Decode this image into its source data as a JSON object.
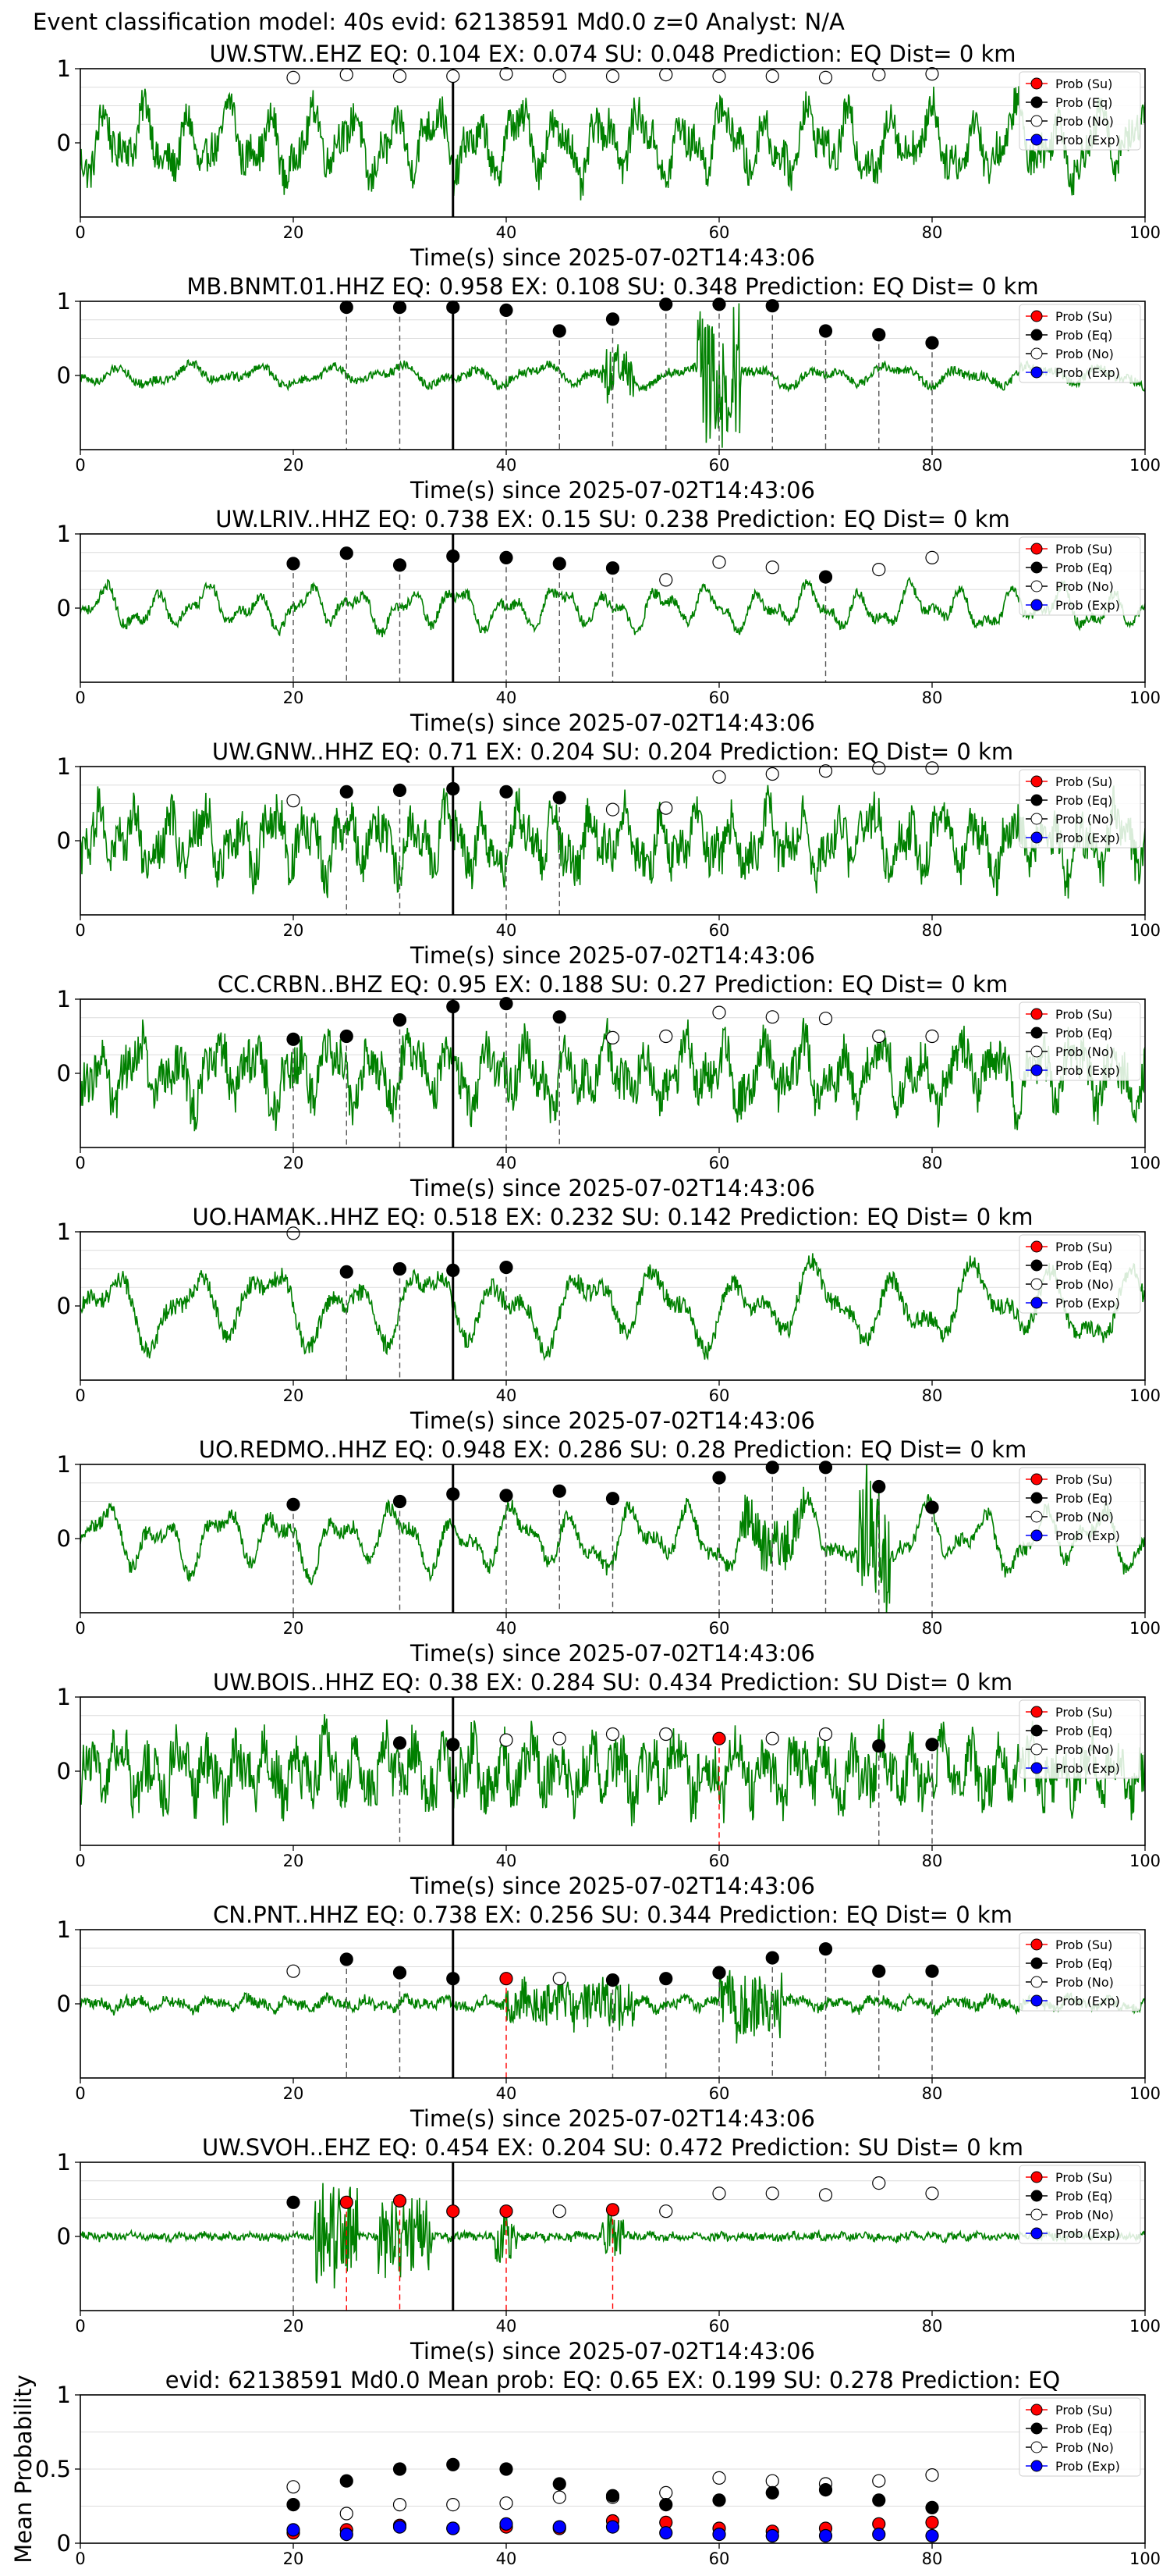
{
  "figure_title": "Event classification model: 40s evid: 62138591 Md0.0 z=0 Analyst: N/A",
  "xlabel": "Time(s) since 2025-07-02T14:43:06",
  "legend_labels": [
    "Prob (Su)",
    "Prob (Eq)",
    "Prob (No)",
    "Prob (Exp)"
  ],
  "colors": {
    "waveform": "#008000",
    "su": "#ff0000",
    "eq": "#000000",
    "no": "#ffffff",
    "exp": "#0000ff",
    "gridline": "#dcdcdc"
  },
  "chart_data": [
    {
      "type": "line",
      "title": "UW.STW..EHZ   EQ: 0.104  EX: 0.074  SU: 0.048   Prediction: EQ    Dist= 0 km",
      "xlim": [
        0,
        100
      ],
      "ylim": [
        -1,
        1
      ],
      "xticks": [
        0,
        20,
        40,
        60,
        80,
        100
      ],
      "yticks": [
        0,
        1
      ],
      "onset_x": 35,
      "waveform": {
        "style": "dense",
        "amp": 0.5,
        "freq": 0.85,
        "noise": 0.25
      },
      "points": [
        {
          "x": 20,
          "class": "no",
          "y": 0.88
        },
        {
          "x": 25,
          "class": "no",
          "y": 0.92
        },
        {
          "x": 30,
          "class": "no",
          "y": 0.9
        },
        {
          "x": 35,
          "class": "no",
          "y": 0.9
        },
        {
          "x": 40,
          "class": "no",
          "y": 0.93
        },
        {
          "x": 45,
          "class": "no",
          "y": 0.9
        },
        {
          "x": 50,
          "class": "no",
          "y": 0.9
        },
        {
          "x": 55,
          "class": "no",
          "y": 0.92
        },
        {
          "x": 60,
          "class": "no",
          "y": 0.9
        },
        {
          "x": 65,
          "class": "no",
          "y": 0.9
        },
        {
          "x": 70,
          "class": "no",
          "y": 0.88
        },
        {
          "x": 75,
          "class": "no",
          "y": 0.92
        },
        {
          "x": 80,
          "class": "no",
          "y": 0.93
        }
      ]
    },
    {
      "type": "line",
      "title": "MB.BNMT.01.HHZ   EQ: 0.958  EX: 0.108  SU: 0.348   Prediction: EQ    Dist= 0 km",
      "xlim": [
        0,
        100
      ],
      "ylim": [
        -1,
        1
      ],
      "xticks": [
        0,
        20,
        40,
        60,
        80,
        100
      ],
      "yticks": [
        0,
        1
      ],
      "onset_x": 35,
      "waveform": {
        "style": "quiet",
        "amp": 0.15,
        "freq": 0.5,
        "noise": 0.06,
        "bursts": [
          [
            58,
            62,
            0.9
          ],
          [
            49,
            52,
            0.35
          ]
        ]
      },
      "points": [
        {
          "x": 25,
          "class": "eq",
          "y": 0.92
        },
        {
          "x": 30,
          "class": "eq",
          "y": 0.92
        },
        {
          "x": 35,
          "class": "eq",
          "y": 0.92
        },
        {
          "x": 40,
          "class": "eq",
          "y": 0.88
        },
        {
          "x": 45,
          "class": "eq",
          "y": 0.6
        },
        {
          "x": 50,
          "class": "eq",
          "y": 0.76
        },
        {
          "x": 55,
          "class": "eq",
          "y": 0.96
        },
        {
          "x": 60,
          "class": "eq",
          "y": 0.96
        },
        {
          "x": 65,
          "class": "eq",
          "y": 0.94
        },
        {
          "x": 70,
          "class": "eq",
          "y": 0.6
        },
        {
          "x": 75,
          "class": "eq",
          "y": 0.55
        },
        {
          "x": 80,
          "class": "eq",
          "y": 0.44
        }
      ]
    },
    {
      "type": "line",
      "title": "UW.LRIV..HHZ   EQ: 0.738  EX: 0.15  SU: 0.238   Prediction: EQ    Dist= 0 km",
      "xlim": [
        0,
        100
      ],
      "ylim": [
        -1,
        1
      ],
      "xticks": [
        0,
        20,
        40,
        60,
        80,
        100
      ],
      "yticks": [
        0,
        1
      ],
      "onset_x": 35,
      "waveform": {
        "style": "smooth",
        "amp": 0.3,
        "freq": 0.7,
        "noise": 0.07
      },
      "points": [
        {
          "x": 20,
          "class": "eq",
          "y": 0.6
        },
        {
          "x": 25,
          "class": "eq",
          "y": 0.74
        },
        {
          "x": 30,
          "class": "eq",
          "y": 0.58
        },
        {
          "x": 35,
          "class": "eq",
          "y": 0.7
        },
        {
          "x": 40,
          "class": "eq",
          "y": 0.68
        },
        {
          "x": 45,
          "class": "eq",
          "y": 0.6
        },
        {
          "x": 50,
          "class": "eq",
          "y": 0.54
        },
        {
          "x": 55,
          "class": "no",
          "y": 0.38
        },
        {
          "x": 60,
          "class": "no",
          "y": 0.62
        },
        {
          "x": 65,
          "class": "no",
          "y": 0.55
        },
        {
          "x": 70,
          "class": "eq",
          "y": 0.42
        },
        {
          "x": 75,
          "class": "no",
          "y": 0.52
        },
        {
          "x": 80,
          "class": "no",
          "y": 0.68
        }
      ]
    },
    {
      "type": "line",
      "title": "UW.GNW..HHZ   EQ: 0.71  EX: 0.204  SU: 0.204   Prediction: EQ    Dist= 0 km",
      "xlim": [
        0,
        100
      ],
      "ylim": [
        -1,
        1
      ],
      "xticks": [
        0,
        20,
        40,
        60,
        80,
        100
      ],
      "yticks": [
        0,
        1
      ],
      "onset_x": 35,
      "waveform": {
        "style": "dense",
        "amp": 0.45,
        "freq": 1.0,
        "noise": 0.3
      },
      "points": [
        {
          "x": 20,
          "class": "no",
          "y": 0.54
        },
        {
          "x": 25,
          "class": "eq",
          "y": 0.66
        },
        {
          "x": 30,
          "class": "eq",
          "y": 0.68
        },
        {
          "x": 35,
          "class": "eq",
          "y": 0.7
        },
        {
          "x": 40,
          "class": "eq",
          "y": 0.66
        },
        {
          "x": 45,
          "class": "eq",
          "y": 0.58
        },
        {
          "x": 50,
          "class": "no",
          "y": 0.42
        },
        {
          "x": 55,
          "class": "no",
          "y": 0.44
        },
        {
          "x": 60,
          "class": "no",
          "y": 0.86
        },
        {
          "x": 65,
          "class": "no",
          "y": 0.9
        },
        {
          "x": 70,
          "class": "no",
          "y": 0.94
        },
        {
          "x": 75,
          "class": "no",
          "y": 0.98
        },
        {
          "x": 80,
          "class": "no",
          "y": 0.98
        }
      ]
    },
    {
      "type": "line",
      "title": "CC.CRBN..BHZ   EQ: 0.95  EX: 0.188  SU: 0.27   Prediction: EQ    Dist= 0 km",
      "xlim": [
        0,
        100
      ],
      "ylim": [
        -1,
        1
      ],
      "xticks": [
        0,
        20,
        40,
        60,
        80,
        100
      ],
      "yticks": [
        0,
        1
      ],
      "onset_x": 35,
      "waveform": {
        "style": "dense",
        "amp": 0.45,
        "freq": 0.9,
        "noise": 0.3
      },
      "points": [
        {
          "x": 20,
          "class": "eq",
          "y": 0.46
        },
        {
          "x": 25,
          "class": "eq",
          "y": 0.5
        },
        {
          "x": 30,
          "class": "eq",
          "y": 0.72
        },
        {
          "x": 35,
          "class": "eq",
          "y": 0.9
        },
        {
          "x": 40,
          "class": "eq",
          "y": 0.94
        },
        {
          "x": 45,
          "class": "eq",
          "y": 0.76
        },
        {
          "x": 50,
          "class": "no",
          "y": 0.48
        },
        {
          "x": 55,
          "class": "no",
          "y": 0.5
        },
        {
          "x": 60,
          "class": "no",
          "y": 0.82
        },
        {
          "x": 65,
          "class": "no",
          "y": 0.76
        },
        {
          "x": 70,
          "class": "no",
          "y": 0.74
        },
        {
          "x": 75,
          "class": "no",
          "y": 0.5
        },
        {
          "x": 80,
          "class": "no",
          "y": 0.5
        }
      ]
    },
    {
      "type": "line",
      "title": "UO.HAMAK..HHZ   EQ: 0.518  EX: 0.232  SU: 0.142   Prediction: EQ    Dist= 0 km",
      "xlim": [
        0,
        100
      ],
      "ylim": [
        -1,
        1
      ],
      "xticks": [
        0,
        20,
        40,
        60,
        80,
        100
      ],
      "yticks": [
        0,
        1
      ],
      "onset_x": 35,
      "waveform": {
        "style": "smooth",
        "amp": 0.55,
        "freq": 0.45,
        "noise": 0.12
      },
      "points": [
        {
          "x": 20,
          "class": "no",
          "y": 0.98
        },
        {
          "x": 25,
          "class": "eq",
          "y": 0.46
        },
        {
          "x": 30,
          "class": "eq",
          "y": 0.5
        },
        {
          "x": 35,
          "class": "eq",
          "y": 0.48
        },
        {
          "x": 40,
          "class": "eq",
          "y": 0.52
        }
      ]
    },
    {
      "type": "line",
      "title": "UO.REDMO..HHZ   EQ: 0.948  EX: 0.286  SU: 0.28   Prediction: EQ    Dist= 0 km",
      "xlim": [
        0,
        100
      ],
      "ylim": [
        -1,
        1
      ],
      "xticks": [
        0,
        20,
        40,
        60,
        80,
        100
      ],
      "yticks": [
        0,
        1
      ],
      "onset_x": 35,
      "waveform": {
        "style": "smooth",
        "amp": 0.45,
        "freq": 0.6,
        "noise": 0.1,
        "bursts": [
          [
            62,
            68,
            0.35
          ],
          [
            73,
            76,
            0.8
          ]
        ]
      },
      "points": [
        {
          "x": 20,
          "class": "eq",
          "y": 0.46
        },
        {
          "x": 30,
          "class": "eq",
          "y": 0.5
        },
        {
          "x": 35,
          "class": "eq",
          "y": 0.6
        },
        {
          "x": 40,
          "class": "eq",
          "y": 0.58
        },
        {
          "x": 45,
          "class": "eq",
          "y": 0.64
        },
        {
          "x": 50,
          "class": "eq",
          "y": 0.54
        },
        {
          "x": 60,
          "class": "eq",
          "y": 0.82
        },
        {
          "x": 65,
          "class": "eq",
          "y": 0.96
        },
        {
          "x": 70,
          "class": "eq",
          "y": 0.96
        },
        {
          "x": 75,
          "class": "eq",
          "y": 0.7
        },
        {
          "x": 80,
          "class": "eq",
          "y": 0.42
        }
      ]
    },
    {
      "type": "line",
      "title": "UW.BOIS..HHZ   EQ: 0.38  EX: 0.284  SU: 0.434   Prediction: SU    Dist= 0 km",
      "xlim": [
        0,
        100
      ],
      "ylim": [
        -1,
        1
      ],
      "xticks": [
        0,
        20,
        40,
        60,
        80,
        100
      ],
      "yticks": [
        0,
        1
      ],
      "onset_x": 35,
      "waveform": {
        "style": "dense",
        "amp": 0.4,
        "freq": 1.2,
        "noise": 0.35
      },
      "points": [
        {
          "x": 30,
          "class": "eq",
          "y": 0.38
        },
        {
          "x": 35,
          "class": "eq",
          "y": 0.36
        },
        {
          "x": 40,
          "class": "no",
          "y": 0.42
        },
        {
          "x": 45,
          "class": "no",
          "y": 0.44
        },
        {
          "x": 50,
          "class": "no",
          "y": 0.5
        },
        {
          "x": 55,
          "class": "no",
          "y": 0.5
        },
        {
          "x": 60,
          "class": "su",
          "y": 0.44
        },
        {
          "x": 65,
          "class": "no",
          "y": 0.44
        },
        {
          "x": 70,
          "class": "no",
          "y": 0.5
        },
        {
          "x": 75,
          "class": "eq",
          "y": 0.34
        },
        {
          "x": 80,
          "class": "eq",
          "y": 0.36
        }
      ]
    },
    {
      "type": "line",
      "title": "CN.PNT..HHZ   EQ: 0.738  EX: 0.256  SU: 0.344   Prediction: EQ    Dist= 0 km",
      "xlim": [
        0,
        100
      ],
      "ylim": [
        -1,
        1
      ],
      "xticks": [
        0,
        20,
        40,
        60,
        80,
        100
      ],
      "yticks": [
        0,
        1
      ],
      "onset_x": 35,
      "waveform": {
        "style": "quiet",
        "amp": 0.08,
        "freq": 0.9,
        "noise": 0.07,
        "bursts": [
          [
            40,
            52,
            0.3
          ],
          [
            60,
            66,
            0.45
          ]
        ]
      },
      "points": [
        {
          "x": 20,
          "class": "no",
          "y": 0.44
        },
        {
          "x": 25,
          "class": "eq",
          "y": 0.6
        },
        {
          "x": 30,
          "class": "eq",
          "y": 0.42
        },
        {
          "x": 35,
          "class": "eq",
          "y": 0.34
        },
        {
          "x": 40,
          "class": "su",
          "y": 0.34
        },
        {
          "x": 45,
          "class": "no",
          "y": 0.34
        },
        {
          "x": 50,
          "class": "eq",
          "y": 0.32
        },
        {
          "x": 55,
          "class": "eq",
          "y": 0.34
        },
        {
          "x": 60,
          "class": "eq",
          "y": 0.42
        },
        {
          "x": 65,
          "class": "eq",
          "y": 0.62
        },
        {
          "x": 70,
          "class": "eq",
          "y": 0.74
        },
        {
          "x": 75,
          "class": "eq",
          "y": 0.44
        },
        {
          "x": 80,
          "class": "eq",
          "y": 0.44
        }
      ]
    },
    {
      "type": "line",
      "title": "UW.SVOH..EHZ   EQ: 0.454  EX: 0.204  SU: 0.472   Prediction: SU    Dist= 0 km",
      "xlim": [
        0,
        100
      ],
      "ylim": [
        -1,
        1
      ],
      "xticks": [
        0,
        20,
        40,
        60,
        80,
        100
      ],
      "yticks": [
        0,
        1
      ],
      "onset_x": 35,
      "waveform": {
        "style": "quiet",
        "amp": 0.03,
        "freq": 1.5,
        "noise": 0.05,
        "bursts": [
          [
            22,
            26,
            0.7
          ],
          [
            28,
            33,
            0.55
          ],
          [
            39,
            41,
            0.35
          ],
          [
            49,
            51,
            0.3
          ]
        ]
      },
      "points": [
        {
          "x": 20,
          "class": "eq",
          "y": 0.46
        },
        {
          "x": 25,
          "class": "su",
          "y": 0.46
        },
        {
          "x": 30,
          "class": "su",
          "y": 0.48
        },
        {
          "x": 35,
          "class": "su",
          "y": 0.34
        },
        {
          "x": 40,
          "class": "su",
          "y": 0.34
        },
        {
          "x": 45,
          "class": "no",
          "y": 0.34
        },
        {
          "x": 50,
          "class": "su",
          "y": 0.36
        },
        {
          "x": 55,
          "class": "no",
          "y": 0.34
        },
        {
          "x": 60,
          "class": "no",
          "y": 0.58
        },
        {
          "x": 65,
          "class": "no",
          "y": 0.58
        },
        {
          "x": 70,
          "class": "no",
          "y": 0.56
        },
        {
          "x": 75,
          "class": "no",
          "y": 0.72
        },
        {
          "x": 80,
          "class": "no",
          "y": 0.58
        }
      ]
    },
    {
      "type": "scatter",
      "title": "evid: 62138591  Md0.0   Mean prob:   EQ: 0.65  EX: 0.199  SU: 0.278   Prediction: EQ",
      "xlim": [
        0,
        100
      ],
      "ylim": [
        0,
        1
      ],
      "xticks": [
        0,
        20,
        40,
        60,
        80,
        100
      ],
      "yticks": [
        0,
        0.5,
        1
      ],
      "ylabel": "Mean Probability",
      "x": [
        20,
        25,
        30,
        35,
        40,
        45,
        50,
        55,
        60,
        65,
        70,
        75,
        80
      ],
      "series": [
        {
          "key": "no",
          "values": [
            0.38,
            0.2,
            0.26,
            0.26,
            0.27,
            0.31,
            0.31,
            0.34,
            0.44,
            0.42,
            0.4,
            0.42,
            0.46
          ]
        },
        {
          "key": "eq",
          "values": [
            0.26,
            0.42,
            0.5,
            0.53,
            0.5,
            0.4,
            0.32,
            0.26,
            0.29,
            0.34,
            0.36,
            0.29,
            0.24
          ]
        },
        {
          "key": "su",
          "values": [
            0.07,
            0.09,
            0.12,
            0.1,
            0.11,
            0.1,
            0.15,
            0.14,
            0.1,
            0.08,
            0.1,
            0.13,
            0.14
          ]
        },
        {
          "key": "exp",
          "values": [
            0.09,
            0.06,
            0.11,
            0.1,
            0.13,
            0.11,
            0.11,
            0.07,
            0.06,
            0.05,
            0.05,
            0.06,
            0.05
          ]
        }
      ]
    }
  ]
}
